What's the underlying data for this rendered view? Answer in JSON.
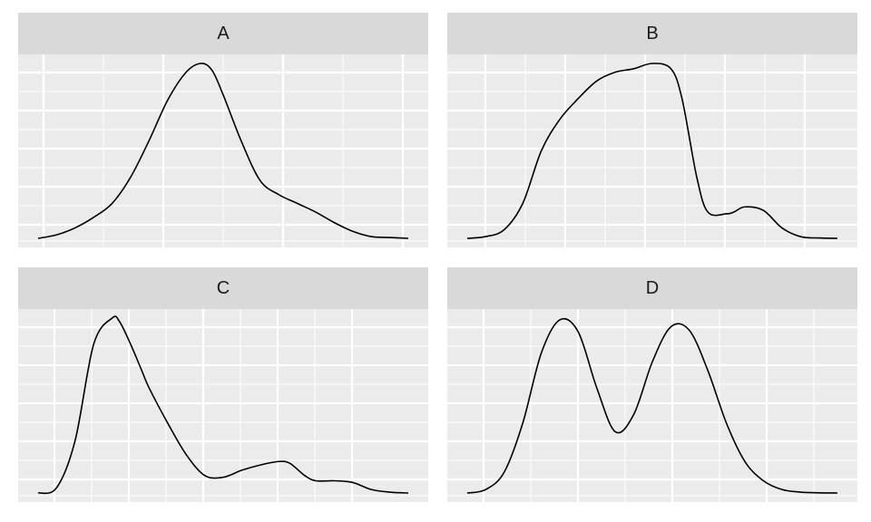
{
  "colors": {
    "panel_background": "#ebebeb",
    "strip_background": "#d9d9d9",
    "grid_line": "#ffffff",
    "curve": "#000000"
  },
  "chart_data": [
    {
      "type": "line",
      "facet": "A",
      "title": "A",
      "grid": true,
      "x": [
        0,
        0.05,
        0.1,
        0.15,
        0.2,
        0.25,
        0.3,
        0.35,
        0.4,
        0.44,
        0.47,
        0.5,
        0.55,
        0.6,
        0.65,
        0.7,
        0.75,
        0.8,
        0.85,
        0.9,
        0.95,
        1
      ],
      "y": [
        0.0,
        0.02,
        0.06,
        0.12,
        0.2,
        0.35,
        0.56,
        0.79,
        0.95,
        1.0,
        0.96,
        0.82,
        0.55,
        0.33,
        0.25,
        0.2,
        0.15,
        0.09,
        0.04,
        0.01,
        0.005,
        0.0
      ]
    },
    {
      "type": "line",
      "facet": "B",
      "title": "B",
      "grid": true,
      "x": [
        0,
        0.05,
        0.1,
        0.15,
        0.2,
        0.25,
        0.3,
        0.35,
        0.4,
        0.45,
        0.5,
        0.55,
        0.58,
        0.62,
        0.65,
        0.7,
        0.72,
        0.75,
        0.8,
        0.85,
        0.9,
        0.95,
        1
      ],
      "y": [
        0.0,
        0.01,
        0.05,
        0.2,
        0.5,
        0.68,
        0.8,
        0.9,
        0.95,
        0.97,
        1.0,
        0.97,
        0.8,
        0.35,
        0.15,
        0.14,
        0.15,
        0.18,
        0.16,
        0.06,
        0.01,
        0.002,
        0.0
      ]
    },
    {
      "type": "line",
      "facet": "C",
      "title": "C",
      "grid": true,
      "x": [
        0,
        0.05,
        0.1,
        0.15,
        0.2,
        0.22,
        0.25,
        0.28,
        0.3,
        0.35,
        0.4,
        0.45,
        0.5,
        0.55,
        0.6,
        0.65,
        0.68,
        0.72,
        0.75,
        0.8,
        0.85,
        0.9,
        0.95,
        1
      ],
      "y": [
        0.0,
        0.03,
        0.3,
        0.85,
        1.0,
        0.98,
        0.85,
        0.7,
        0.6,
        0.4,
        0.22,
        0.1,
        0.09,
        0.13,
        0.16,
        0.18,
        0.17,
        0.1,
        0.07,
        0.07,
        0.06,
        0.02,
        0.005,
        0.0
      ]
    },
    {
      "type": "line",
      "facet": "D",
      "title": "D",
      "grid": true,
      "x": [
        0,
        0.05,
        0.1,
        0.15,
        0.2,
        0.25,
        0.3,
        0.35,
        0.4,
        0.45,
        0.5,
        0.55,
        0.6,
        0.65,
        0.7,
        0.75,
        0.8,
        0.85,
        0.9,
        0.95,
        1
      ],
      "y": [
        0.0,
        0.02,
        0.12,
        0.4,
        0.8,
        0.99,
        0.92,
        0.6,
        0.35,
        0.45,
        0.75,
        0.95,
        0.93,
        0.7,
        0.4,
        0.18,
        0.07,
        0.02,
        0.005,
        0.001,
        0.0
      ]
    }
  ]
}
